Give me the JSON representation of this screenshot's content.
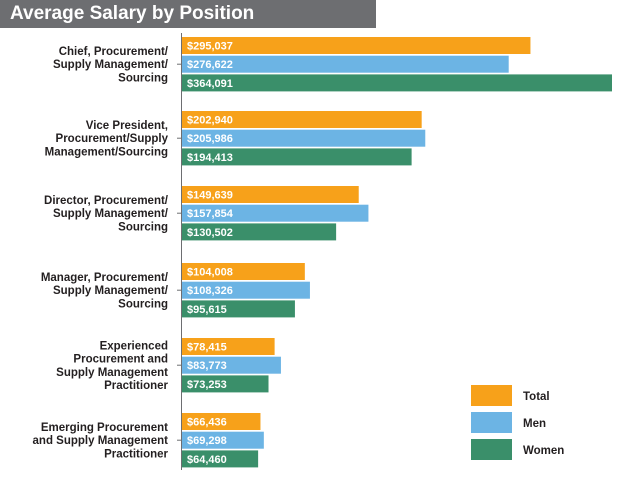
{
  "chart_data": {
    "type": "bar",
    "orientation": "horizontal",
    "title": "Average Salary by Position",
    "categories": [
      [
        "Chief, Procurement/",
        "Supply Management/",
        "Sourcing"
      ],
      [
        "Vice President,",
        "Procurement/Supply",
        "Management/Sourcing"
      ],
      [
        "Director, Procurement/",
        "Supply Management/",
        "Sourcing"
      ],
      [
        "Manager, Procurement/",
        "Supply Management/",
        "Sourcing"
      ],
      [
        "Experienced",
        "Procurement and",
        "Supply Management",
        "Practitioner"
      ],
      [
        "Emerging Procurement",
        "and Supply Management",
        "Practitioner"
      ]
    ],
    "series": [
      {
        "name": "Total",
        "color": "#f7a11a",
        "values": [
          295037,
          202940,
          149639,
          104008,
          78415,
          66436
        ],
        "labels": [
          "$295,037",
          "$202,940",
          "$149,639",
          "$104,008",
          "$78,415",
          "$66,436"
        ]
      },
      {
        "name": "Men",
        "color": "#6cb4e4",
        "values": [
          276622,
          205986,
          157854,
          108326,
          83773,
          69298
        ],
        "labels": [
          "$276,622",
          "$205,986",
          "$157,854",
          "$108,326",
          "$83,773",
          "$69,298"
        ]
      },
      {
        "name": "Women",
        "color": "#3a8f6a",
        "values": [
          364091,
          194413,
          130502,
          95615,
          73253,
          64460
        ],
        "labels": [
          "$364,091",
          "$194,413",
          "$130,502",
          "$95,615",
          "$73,253",
          "$64,460"
        ]
      }
    ],
    "xlim": [
      0,
      364091
    ],
    "grid": false,
    "legend_position": "bottom-right"
  }
}
